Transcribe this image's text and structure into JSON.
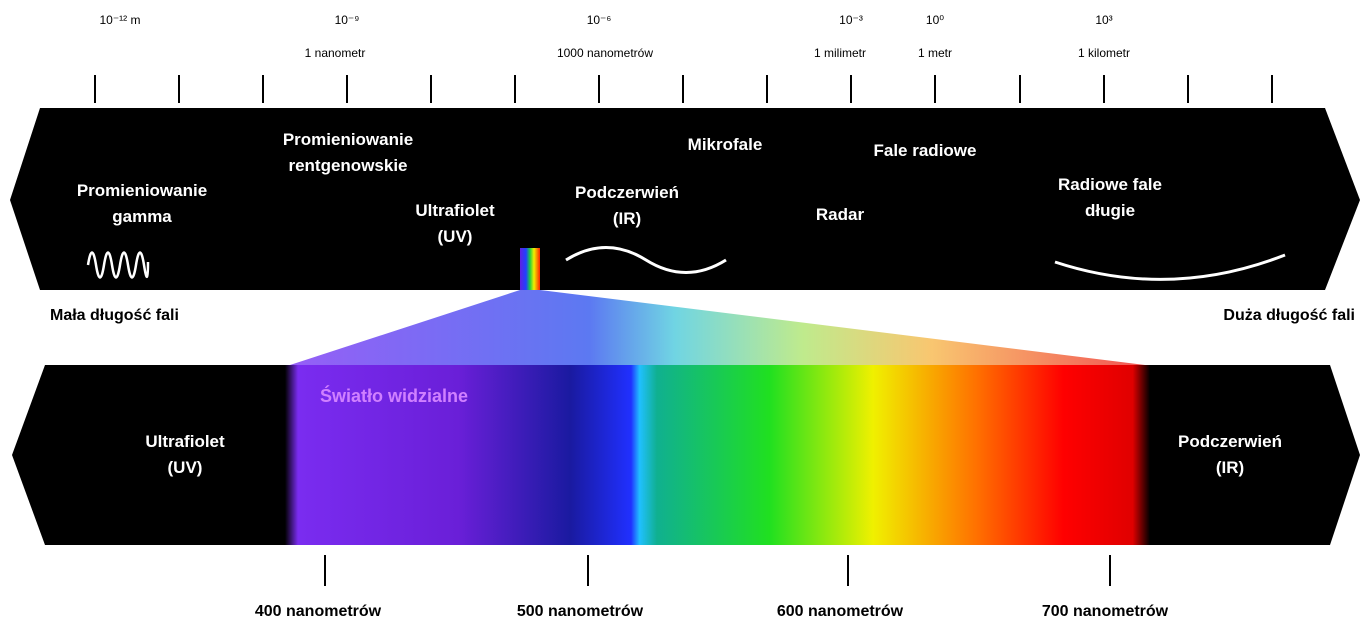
{
  "scale": [
    {
      "power": "10⁻¹² m"
    },
    {
      "power": "10⁻⁹",
      "unit": "1 nanometr"
    },
    {
      "power": "10⁻⁶",
      "unit": "1000 nanometrów"
    },
    {
      "power": "10⁻³",
      "unit": "1 milimetr"
    },
    {
      "power": "10⁰",
      "unit": "1 metr"
    },
    {
      "power": "10³",
      "unit": "1 kilometr"
    }
  ],
  "bands": [
    {
      "lines": [
        "Promieniowanie",
        "gamma"
      ]
    },
    {
      "lines": [
        "Promieniowanie",
        "rentgenowskie"
      ]
    },
    {
      "lines": [
        "Ultrafiolet",
        "(UV)"
      ]
    },
    {
      "lines": [
        "Podczerwień",
        "(IR)"
      ]
    },
    {
      "lines": [
        "Mikrofale"
      ]
    },
    {
      "lines": [
        "Fale radiowe"
      ]
    },
    {
      "lines": [
        "Radar"
      ]
    },
    {
      "lines": [
        "Radiowe fale",
        "długie"
      ]
    }
  ],
  "short_wave": "Mała długość fali",
  "long_wave": "Duża długość fali",
  "visible": {
    "title": "Światło widzialne",
    "left": [
      "Ultrafiolet",
      "(UV)"
    ],
    "right": [
      "Podczerwień",
      "(IR)"
    ],
    "wavelengths": [
      "400 nanometrów",
      "500 nanometrów",
      "600 nanometrów",
      "700 nanometrów"
    ]
  }
}
